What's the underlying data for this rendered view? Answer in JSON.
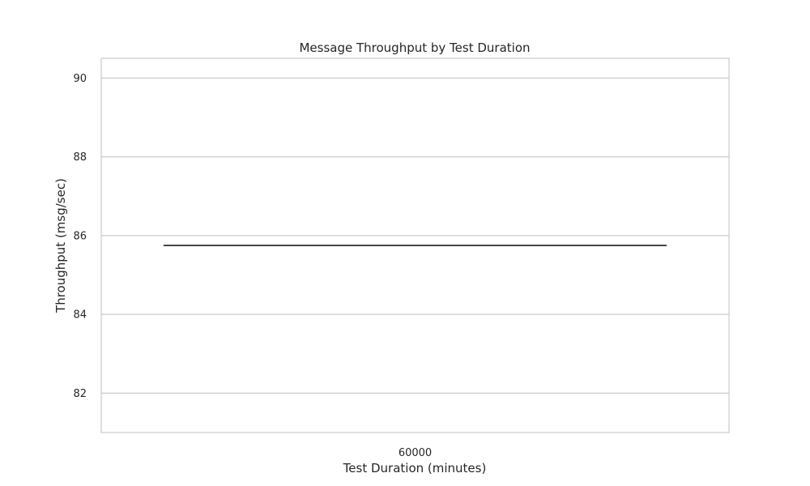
{
  "chart_data": {
    "type": "box",
    "title": "Message Throughput by Test Duration",
    "xlabel": "Test Duration (minutes)",
    "ylabel": "Throughput (msg/sec)",
    "categories": [
      "60000"
    ],
    "boxes": [
      {
        "category": "60000",
        "min": 85.75,
        "q1": 85.75,
        "median": 85.75,
        "q3": 85.75,
        "max": 85.75
      }
    ],
    "ylim": [
      81.0,
      90.5
    ],
    "yticks": [
      82,
      84,
      86,
      88,
      90
    ],
    "grid": true,
    "legend": "none",
    "colors": {
      "background": "#ffffff",
      "grid": "#cccccc",
      "frame": "#cccccc",
      "box_line": "#3f3f3f",
      "text": "#262626"
    }
  }
}
